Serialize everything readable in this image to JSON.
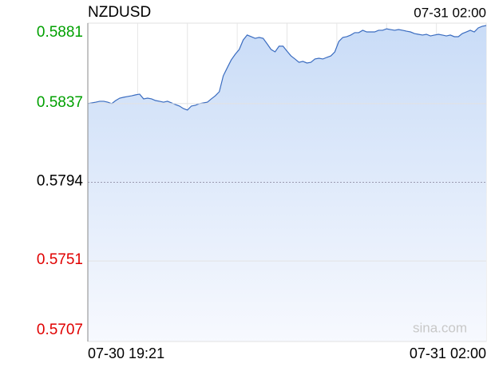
{
  "chart_data": {
    "type": "line",
    "title": "NZDUSD",
    "updated": "07-31 02:00",
    "watermark": "sina.com",
    "categories": [
      "07-30 19:21",
      null,
      null,
      null,
      null,
      null,
      null,
      null,
      null,
      null,
      null,
      null,
      null,
      null,
      null,
      null,
      null,
      null,
      null,
      null,
      null,
      null,
      null,
      null,
      null,
      null,
      null,
      null,
      null,
      null,
      null,
      null,
      null,
      null,
      null,
      null,
      null,
      null,
      null,
      null,
      null,
      null,
      null,
      null,
      null,
      null,
      null,
      null,
      null,
      null,
      null,
      null,
      null,
      null,
      null,
      null,
      null,
      null,
      null,
      null,
      null,
      null,
      null,
      null,
      null,
      null,
      null,
      null,
      null,
      null,
      null,
      null,
      null,
      null,
      null,
      null,
      null,
      null,
      null,
      null,
      null,
      null,
      null,
      null,
      null,
      null,
      null,
      null,
      null,
      null,
      null,
      null,
      null,
      null,
      null,
      null,
      null,
      null,
      null,
      null,
      "07-31 02:00"
    ],
    "series": [
      {
        "name": "NZDUSD",
        "color": "#3a6cc0",
        "values": [
          0.5837,
          0.58374,
          0.58378,
          0.58383,
          0.58383,
          0.58378,
          0.5837,
          0.58387,
          0.584,
          0.58405,
          0.58409,
          0.58413,
          0.58418,
          0.58422,
          0.58396,
          0.584,
          0.58396,
          0.58387,
          0.58383,
          0.58378,
          0.58383,
          0.58374,
          0.58365,
          0.58357,
          0.58343,
          0.58335,
          0.58357,
          0.58361,
          0.5837,
          0.58374,
          0.58378,
          0.58396,
          0.58413,
          0.58435,
          0.58522,
          0.58566,
          0.58609,
          0.5864,
          0.58666,
          0.58718,
          0.58745,
          0.58736,
          0.58727,
          0.58732,
          0.58727,
          0.58697,
          0.58666,
          0.58653,
          0.58684,
          0.58684,
          0.58657,
          0.58631,
          0.58614,
          0.58596,
          0.58601,
          0.58592,
          0.58596,
          0.58614,
          0.58618,
          0.58614,
          0.58623,
          0.58631,
          0.58653,
          0.5871,
          0.58732,
          0.58736,
          0.58745,
          0.58758,
          0.58758,
          0.58771,
          0.58762,
          0.58762,
          0.58762,
          0.58771,
          0.58771,
          0.58779,
          0.58775,
          0.58771,
          0.58775,
          0.58771,
          0.58766,
          0.58762,
          0.58753,
          0.58749,
          0.58745,
          0.58749,
          0.5874,
          0.58745,
          0.58749,
          0.58745,
          0.5874,
          0.58745,
          0.58736,
          0.58736,
          0.58753,
          0.58762,
          0.58771,
          0.58762,
          0.58784,
          0.58793,
          0.58797
        ]
      }
    ],
    "ylim": [
      0.5707,
      0.5881
    ],
    "yticks": [
      0.5707,
      0.5751,
      0.5794,
      0.5837,
      0.5881
    ],
    "base_value": 0.5794,
    "up_color": "#00a000",
    "down_color": "#e00000",
    "base_color": "#000000",
    "area_fill": true,
    "grid": true
  }
}
